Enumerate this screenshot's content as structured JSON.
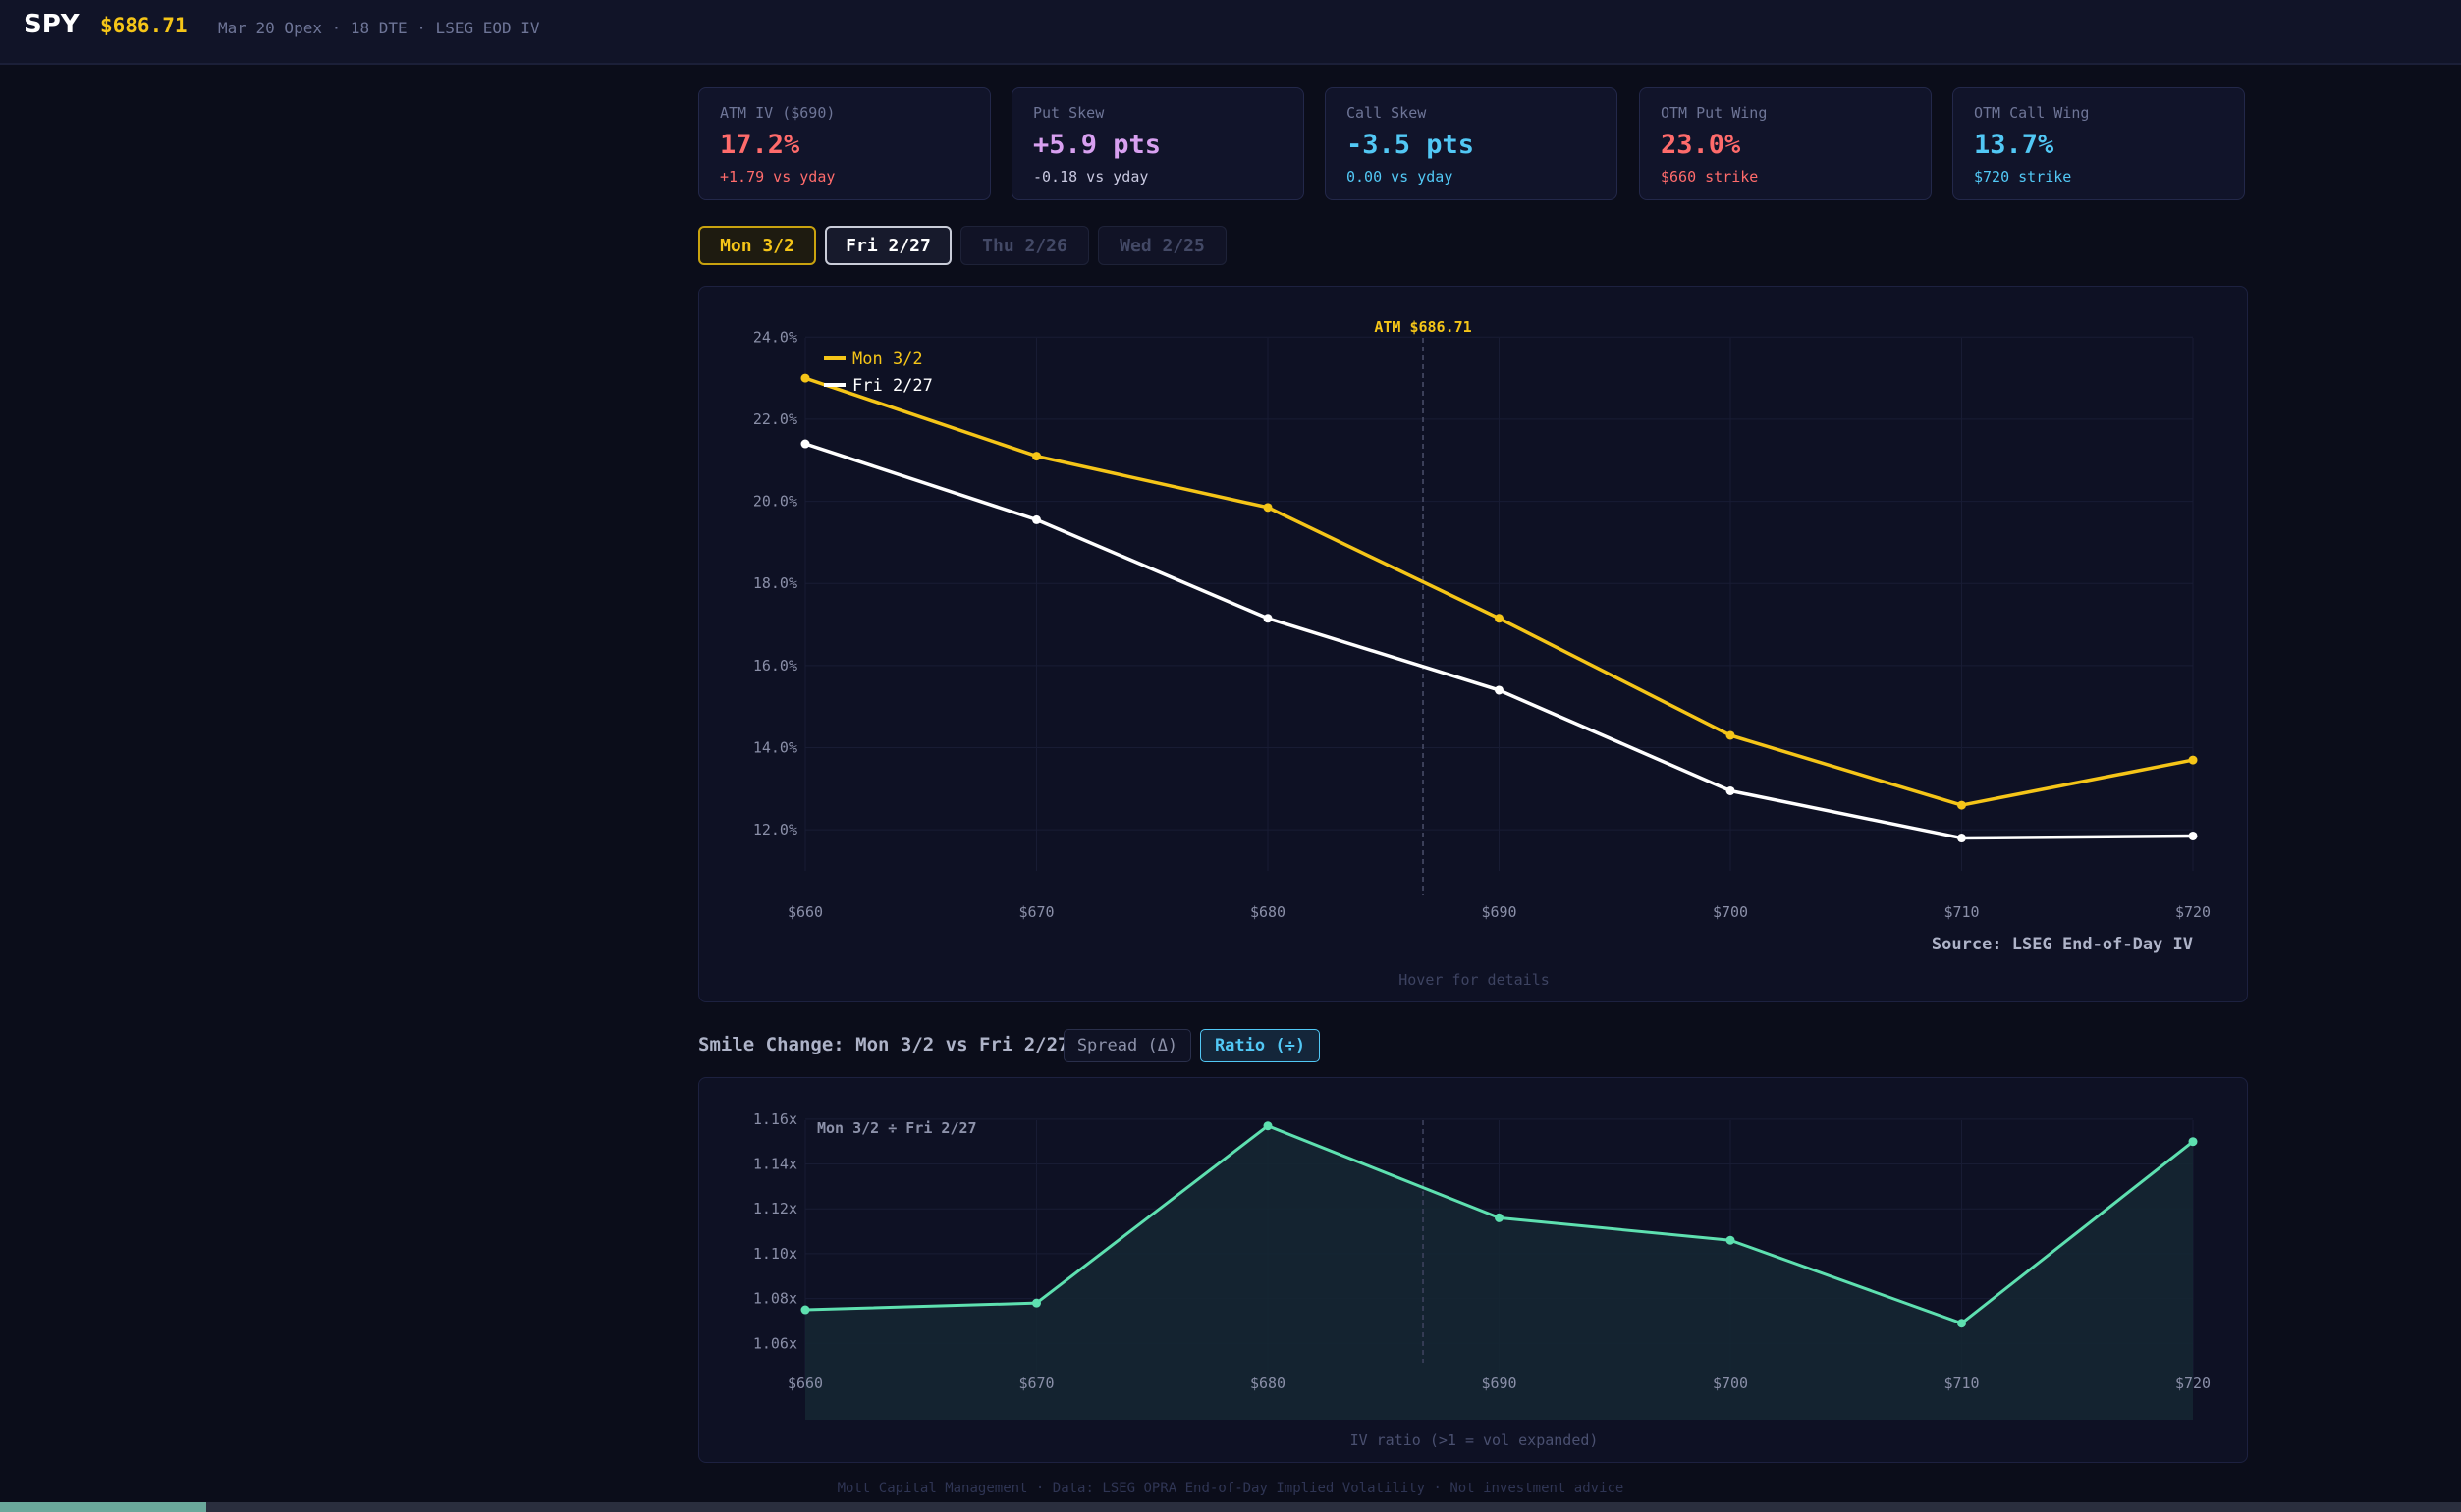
{
  "header": {
    "ticker": "SPY",
    "price": "$686.71",
    "meta": "Mar 20 Opex · 18 DTE · LSEG EOD IV"
  },
  "cards": [
    {
      "label": "ATM IV ($690)",
      "value": "17.2%",
      "sub": "+1.79 vs yday",
      "value_color": "#ff6b6b",
      "sub_color": "#ff6b6b"
    },
    {
      "label": "Put Skew",
      "value": "+5.9 pts",
      "sub": "-0.18 vs yday",
      "value_color": "#d8a0f0",
      "sub_color": "#c8c8e0"
    },
    {
      "label": "Call Skew",
      "value": "-3.5 pts",
      "sub": "0.00 vs yday",
      "value_color": "#52c8f5",
      "sub_color": "#52c8f5"
    },
    {
      "label": "OTM Put Wing",
      "value": "23.0%",
      "sub": "$660 strike",
      "value_color": "#ff6b6b",
      "sub_color": "#ff6b6b"
    },
    {
      "label": "OTM Call Wing",
      "value": "13.7%",
      "sub": "$720 strike",
      "value_color": "#52c8f5",
      "sub_color": "#52c8f5"
    }
  ],
  "date_tabs": [
    "Mon 3/2",
    "Fri 2/27",
    "Thu 2/26",
    "Wed 2/25"
  ],
  "smile_panel": {
    "atm_label": "ATM $686.71",
    "source": "Source: LSEG End-of-Day IV",
    "hover_hint": "Hover for details"
  },
  "change_section": {
    "title": "Smile Change: Mon 3/2 vs Fri 2/27",
    "spread_label": "Spread (Δ)",
    "ratio_label": "Ratio (÷)",
    "chart_label": "Mon 3/2 ÷ Fri 2/27",
    "caption": "IV ratio (>1 = vol expanded)"
  },
  "footer": "Mott Capital Management · Data: LSEG OPRA End-of-Day Implied Volatility · Not investment advice",
  "chart_data": [
    {
      "type": "line",
      "x": [
        660,
        670,
        680,
        690,
        700,
        710,
        720
      ],
      "x_tick_labels": [
        "$660",
        "$670",
        "$680",
        "$690",
        "$700",
        "$710",
        "$720"
      ],
      "y_tick_labels": [
        "24.0%",
        "22.0%",
        "20.0%",
        "18.0%",
        "16.0%",
        "14.0%",
        "12.0%"
      ],
      "ylim": [
        11.0,
        24.7
      ],
      "atm_x": 686.71,
      "series": [
        {
          "name": "Mon 3/2",
          "color": "#f5c518",
          "values": [
            23.0,
            21.1,
            19.85,
            17.15,
            14.3,
            12.6,
            13.7
          ]
        },
        {
          "name": "Fri 2/27",
          "color": "#ffffff",
          "values": [
            21.4,
            19.55,
            17.15,
            15.4,
            12.95,
            11.8,
            11.85
          ]
        }
      ],
      "grid": true,
      "legend": "top-left"
    },
    {
      "type": "area",
      "x": [
        660,
        670,
        680,
        690,
        700,
        710,
        720
      ],
      "x_tick_labels": [
        "$660",
        "$670",
        "$680",
        "$690",
        "$700",
        "$710",
        "$720"
      ],
      "y_tick_labels": [
        "1.16x",
        "1.14x",
        "1.12x",
        "1.10x",
        "1.08x",
        "1.06x"
      ],
      "ylim": [
        1.04,
        1.17
      ],
      "atm_x": 686.71,
      "series": [
        {
          "color": "#5ee0b0",
          "values": [
            1.075,
            1.078,
            1.157,
            1.116,
            1.106,
            1.069,
            1.15
          ]
        }
      ],
      "grid": true
    }
  ]
}
